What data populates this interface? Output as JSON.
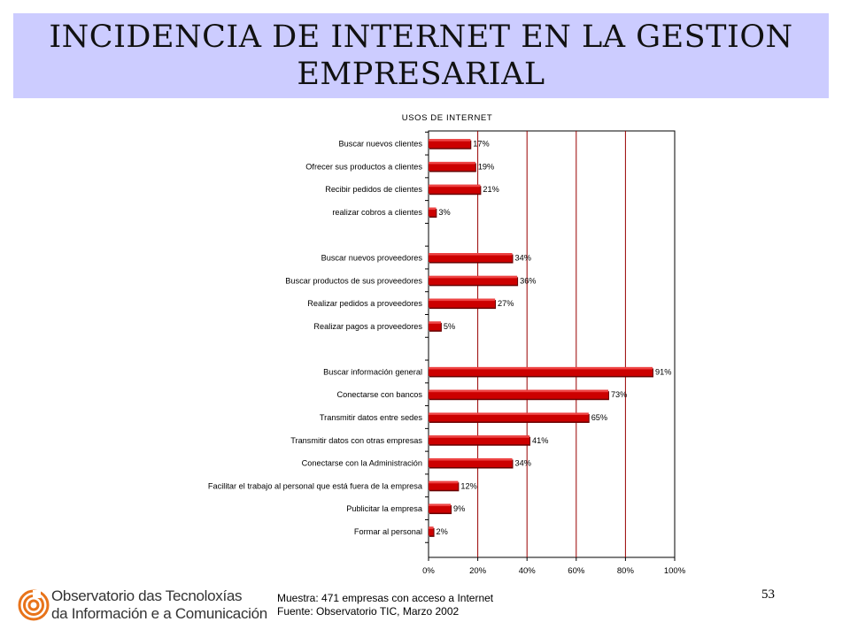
{
  "header": {
    "title_line1": "INCIDENCIA DE INTERNET EN LA GESTION",
    "title_line2": "EMPRESARIAL"
  },
  "chart_data": {
    "type": "bar",
    "orientation": "horizontal",
    "title": "USOS DE INTERNET",
    "xlim": [
      0,
      100
    ],
    "xticks": [
      "0%",
      "20%",
      "40%",
      "60%",
      "80%",
      "100%"
    ],
    "grid": "vertical lines at 20% steps",
    "bar_color": "#cc0000",
    "groups": [
      {
        "categories": [
          "Buscar nuevos clientes",
          "Ofrecer sus productos a clientes",
          "Recibir pedidos de clientes",
          "realizar cobros a clientes"
        ],
        "values": [
          17,
          19,
          21,
          3
        ],
        "labels": [
          "17%",
          "19%",
          "21%",
          "3%"
        ]
      },
      {
        "categories": [
          "Buscar nuevos proveedores",
          "Buscar productos de sus proveedores",
          "Realizar pedidos a proveedores",
          "Realizar pagos a proveedores"
        ],
        "values": [
          34,
          36,
          27,
          5
        ],
        "labels": [
          "34%",
          "36%",
          "27%",
          "5%"
        ]
      },
      {
        "categories": [
          "Buscar información general",
          "Conectarse con bancos",
          "Transmitir datos entre sedes",
          "Transmitir datos con otras empresas",
          "Conectarse con la Administración",
          "Facilitar el trabajo al personal que está fuera de la empresa",
          "Publicitar la empresa",
          "Formar al personal"
        ],
        "values": [
          91,
          73,
          65,
          41,
          34,
          12,
          9,
          2
        ],
        "labels": [
          "91%",
          "73%",
          "65%",
          "41%",
          "34%",
          "12%",
          "9%",
          "2%"
        ]
      }
    ]
  },
  "footer": {
    "sample": "Muestra: 471 empresas con acceso a Internet",
    "source": "Fuente: Observatorio TIC,  Marzo 2002",
    "page_number": "53"
  },
  "logo": {
    "line1": "Observatorio das Tecnoloxías",
    "line2": "da Información e a Comunicación",
    "color": "#e8731a"
  }
}
